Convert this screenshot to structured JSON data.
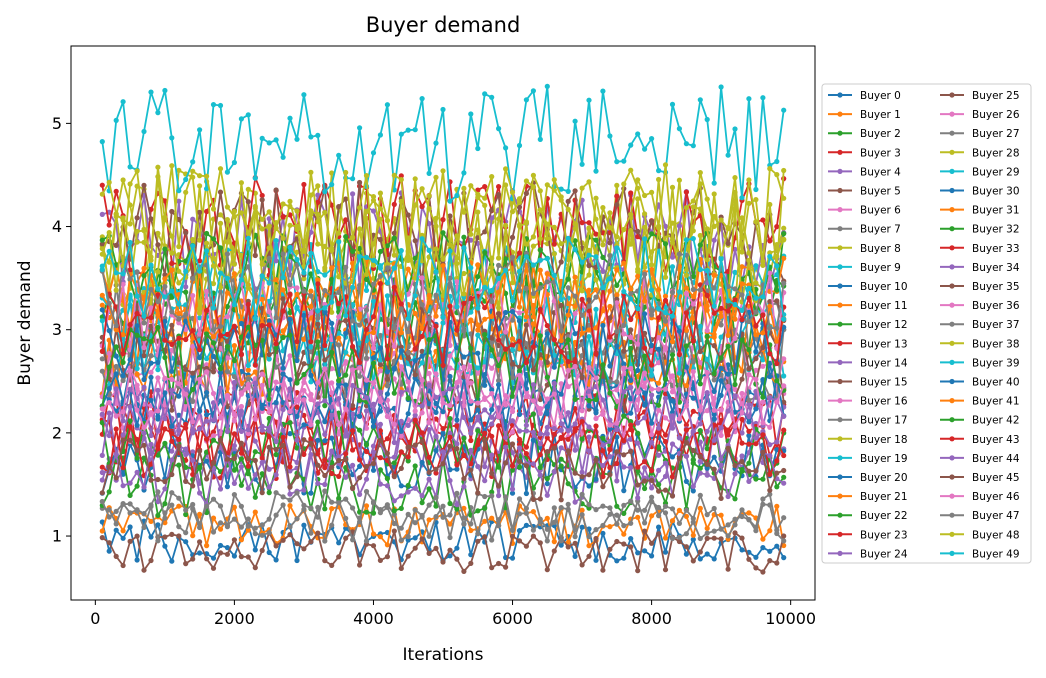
{
  "chart_data": {
    "type": "line",
    "title": "Buyer demand",
    "xlabel": "Iterations",
    "ylabel": "Buyer demand",
    "xlim": [
      -350,
      10350
    ],
    "ylim": [
      0.38,
      5.75
    ],
    "xticks": [
      0,
      2000,
      4000,
      6000,
      8000,
      10000
    ],
    "yticks": [
      1,
      2,
      3,
      4,
      5
    ],
    "xtick_labels": [
      "0",
      "2000",
      "4000",
      "6000",
      "8000",
      "10000"
    ],
    "ytick_labels": [
      "1",
      "2",
      "3",
      "4",
      "5"
    ],
    "grid": false,
    "legend_placement": "outside-right",
    "legend_columns": 2,
    "x_start": 100,
    "x_end": 9900,
    "x_step": 100,
    "colors": [
      "#1f77b4",
      "#ff7f0e",
      "#2ca02c",
      "#d62728",
      "#9467bd",
      "#8c564b",
      "#e377c2",
      "#7f7f7f",
      "#bcbd22",
      "#17becf"
    ],
    "series": [
      {
        "name": "Buyer 0",
        "base": 0.95,
        "spread": 0.1
      },
      {
        "name": "Buyer 1",
        "base": 1.1,
        "spread": 0.1
      },
      {
        "name": "Buyer 2",
        "base": 3.2,
        "spread": 0.2
      },
      {
        "name": "Buyer 3",
        "base": 2.1,
        "spread": 0.15
      },
      {
        "name": "Buyer 4",
        "base": 1.8,
        "spread": 0.15
      },
      {
        "name": "Buyer 5",
        "base": 0.85,
        "spread": 0.1
      },
      {
        "name": "Buyer 6",
        "base": 2.5,
        "spread": 0.15
      },
      {
        "name": "Buyer 7",
        "base": 1.15,
        "spread": 0.1
      },
      {
        "name": "Buyer 8",
        "base": 3.9,
        "spread": 0.25
      },
      {
        "name": "Buyer 9",
        "base": 3.45,
        "spread": 0.2
      },
      {
        "name": "Buyer 10",
        "base": 1.7,
        "spread": 0.15
      },
      {
        "name": "Buyer 11",
        "base": 3.0,
        "spread": 0.2
      },
      {
        "name": "Buyer 12",
        "base": 1.5,
        "spread": 0.15
      },
      {
        "name": "Buyer 13",
        "base": 1.95,
        "spread": 0.15
      },
      {
        "name": "Buyer 14",
        "base": 3.85,
        "spread": 0.25
      },
      {
        "name": "Buyer 15",
        "base": 2.6,
        "spread": 0.2
      },
      {
        "name": "Buyer 16",
        "base": 2.2,
        "spread": 0.15
      },
      {
        "name": "Buyer 17",
        "base": 3.1,
        "spread": 0.2
      },
      {
        "name": "Buyer 18",
        "base": 3.6,
        "spread": 0.25
      },
      {
        "name": "Buyer 19",
        "base": 2.85,
        "spread": 0.2
      },
      {
        "name": "Buyer 20",
        "base": 2.4,
        "spread": 0.15
      },
      {
        "name": "Buyer 21",
        "base": 2.75,
        "spread": 0.2
      },
      {
        "name": "Buyer 22",
        "base": 1.9,
        "spread": 0.15
      },
      {
        "name": "Buyer 23",
        "base": 4.0,
        "spread": 0.25
      },
      {
        "name": "Buyer 24",
        "base": 2.0,
        "spread": 0.15
      },
      {
        "name": "Buyer 25",
        "base": 3.95,
        "spread": 0.25
      },
      {
        "name": "Buyer 26",
        "base": 2.55,
        "spread": 0.15
      },
      {
        "name": "Buyer 27",
        "base": 2.7,
        "spread": 0.2
      },
      {
        "name": "Buyer 28",
        "base": 4.05,
        "spread": 0.25
      },
      {
        "name": "Buyer 29",
        "base": 2.95,
        "spread": 0.2
      },
      {
        "name": "Buyer 30",
        "base": 2.3,
        "spread": 0.15
      },
      {
        "name": "Buyer 31",
        "base": 3.3,
        "spread": 0.2
      },
      {
        "name": "Buyer 32",
        "base": 3.55,
        "spread": 0.2
      },
      {
        "name": "Buyer 33",
        "base": 1.85,
        "spread": 0.15
      },
      {
        "name": "Buyer 34",
        "base": 1.6,
        "spread": 0.15
      },
      {
        "name": "Buyer 35",
        "base": 2.9,
        "spread": 0.2
      },
      {
        "name": "Buyer 36",
        "base": 3.15,
        "spread": 0.2
      },
      {
        "name": "Buyer 37",
        "base": 1.25,
        "spread": 0.1
      },
      {
        "name": "Buyer 38",
        "base": 3.7,
        "spread": 0.25
      },
      {
        "name": "Buyer 39",
        "base": 4.8,
        "spread": 0.28
      },
      {
        "name": "Buyer 40",
        "base": 2.8,
        "spread": 0.2
      },
      {
        "name": "Buyer 41",
        "base": 3.25,
        "spread": 0.2
      },
      {
        "name": "Buyer 42",
        "base": 2.65,
        "spread": 0.2
      },
      {
        "name": "Buyer 43",
        "base": 3.05,
        "spread": 0.2
      },
      {
        "name": "Buyer 44",
        "base": 2.2,
        "spread": 0.15
      },
      {
        "name": "Buyer 45",
        "base": 1.65,
        "spread": 0.15
      },
      {
        "name": "Buyer 46",
        "base": 2.35,
        "spread": 0.15
      },
      {
        "name": "Buyer 47",
        "base": 3.35,
        "spread": 0.2
      },
      {
        "name": "Buyer 48",
        "base": 4.1,
        "spread": 0.25
      },
      {
        "name": "Buyer 49",
        "base": 3.5,
        "spread": 0.2
      }
    ]
  }
}
